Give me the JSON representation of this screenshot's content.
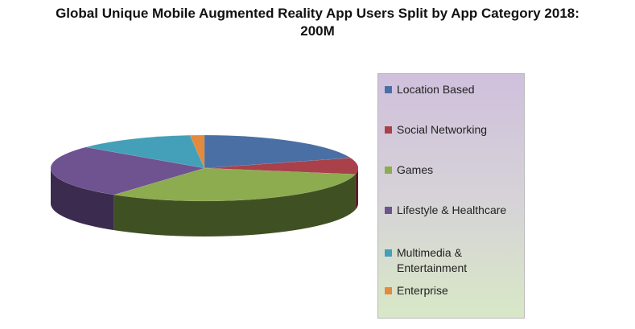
{
  "chart_data": {
    "type": "pie",
    "title": "Global Unique Mobile Augmented Reality App Users Split by App Category 2018:",
    "title_line2": "200M",
    "legend_position": "right",
    "three_d": true,
    "categories": [
      "Location Based",
      "Social Networking",
      "Games",
      "Lifestyle & Healthcare",
      "Multimedia & Entertainment",
      "Enterprise"
    ],
    "legend_labels": [
      [
        "Location Based"
      ],
      [
        "Social Networking"
      ],
      [
        "Games"
      ],
      [
        "Lifestyle & Healthcare"
      ],
      [
        "Multimedia &",
        "Entertainment"
      ],
      [
        "Enterprise"
      ]
    ],
    "values": [
      20,
      8,
      32,
      26,
      12.5,
      1.5
    ],
    "colors": [
      "#4a6fa5",
      "#a8414a",
      "#8dab4f",
      "#6e5390",
      "#44a0b8",
      "#e38a3c"
    ],
    "side_colors": [
      "#2d4466",
      "#5a1e23",
      "#3f5022",
      "#3b2b4f",
      "#226173",
      "#8a4f1d"
    ]
  }
}
